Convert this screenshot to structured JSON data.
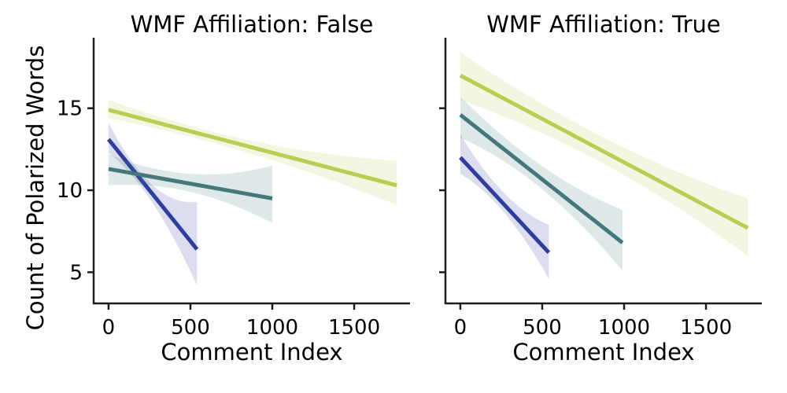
{
  "figure": {
    "background": "#ffffff",
    "text_color": "#000000",
    "spine_color": "#1c1c1c",
    "band_opacity": 0.17,
    "shared_ylabel": "Count of Polarized Words"
  },
  "chart_data": [
    {
      "type": "line",
      "title": "WMF Affiliation: False",
      "xlabel": "Comment Index",
      "ylabel": "Count of Polarized Words",
      "xlim": [
        -91,
        1841
      ],
      "ylim": [
        3.1,
        19.3
      ],
      "xticks": [
        0,
        500,
        1000,
        1500
      ],
      "yticks": [
        5,
        10,
        15
      ],
      "show_ytick_labels": true,
      "grid": "off",
      "legend": "none",
      "series": [
        {
          "name": "dark-blue",
          "color": "#2d3da0",
          "x": [
            0,
            540
          ],
          "y": [
            13.1,
            6.4
          ],
          "ci_upper": [
            14.1,
            10.3,
            9.3
          ],
          "ci_lower": [
            12.3,
            9.2,
            4.2
          ]
        },
        {
          "name": "teal",
          "color": "#44787c",
          "x": [
            0,
            1000
          ],
          "y": [
            11.3,
            9.5
          ],
          "ci_upper": [
            12.2,
            11.0,
            11.5
          ],
          "ci_lower": [
            10.3,
            9.9,
            8.0
          ]
        },
        {
          "name": "yellow-green",
          "color": "#b6cf52",
          "x": [
            0,
            1760
          ],
          "y": [
            14.9,
            10.3
          ],
          "ci_upper": [
            15.5,
            13.0,
            11.8
          ],
          "ci_lower": [
            14.4,
            12.2,
            9.1
          ]
        }
      ]
    },
    {
      "type": "line",
      "title": "WMF Affiliation: True",
      "xlabel": "Comment Index",
      "ylabel": "",
      "xlim": [
        -91,
        1841
      ],
      "ylim": [
        3.1,
        19.3
      ],
      "xticks": [
        0,
        500,
        1000,
        1500
      ],
      "yticks": [
        5,
        10,
        15
      ],
      "show_ytick_labels": false,
      "grid": "off",
      "legend": "none",
      "series": [
        {
          "name": "dark-blue",
          "color": "#2d3da0",
          "x": [
            0,
            540
          ],
          "y": [
            12.0,
            6.2
          ],
          "ci_upper": [
            13.4,
            9.8,
            7.9
          ],
          "ci_lower": [
            11.0,
            8.6,
            4.6
          ]
        },
        {
          "name": "teal",
          "color": "#44787c",
          "x": [
            0,
            990
          ],
          "y": [
            14.6,
            6.8
          ],
          "ci_upper": [
            15.7,
            11.5,
            8.8
          ],
          "ci_lower": [
            13.2,
            10.1,
            5.1
          ]
        },
        {
          "name": "yellow-green",
          "color": "#b6cf52",
          "x": [
            0,
            1755
          ],
          "y": [
            17.0,
            7.7
          ],
          "ci_upper": [
            18.4,
            13.2,
            9.5
          ],
          "ci_lower": [
            15.5,
            11.6,
            6.0
          ]
        }
      ]
    }
  ]
}
